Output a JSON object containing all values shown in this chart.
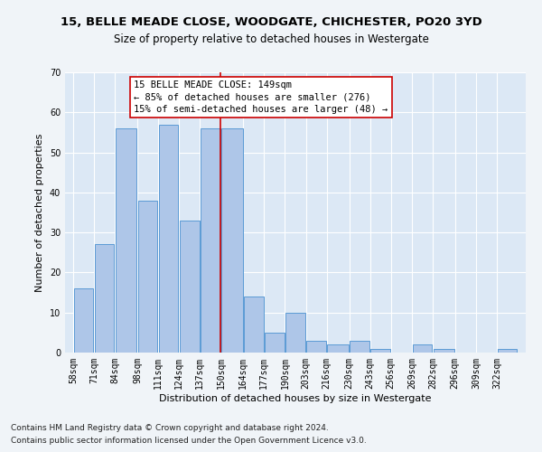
{
  "title": "15, BELLE MEADE CLOSE, WOODGATE, CHICHESTER, PO20 3YD",
  "subtitle": "Size of property relative to detached houses in Westergate",
  "xlabel": "Distribution of detached houses by size in Westergate",
  "ylabel": "Number of detached properties",
  "footnote1": "Contains HM Land Registry data © Crown copyright and database right 2024.",
  "footnote2": "Contains public sector information licensed under the Open Government Licence v3.0.",
  "annotation_line1": "15 BELLE MEADE CLOSE: 149sqm",
  "annotation_line2": "← 85% of detached houses are smaller (276)",
  "annotation_line3": "15% of semi-detached houses are larger (48) →",
  "bar_color": "#aec6e8",
  "bar_edge_color": "#5b9bd5",
  "ref_line_x": 150,
  "ref_line_color": "#cc0000",
  "categories": [
    "58sqm",
    "71sqm",
    "84sqm",
    "98sqm",
    "111sqm",
    "124sqm",
    "137sqm",
    "150sqm",
    "164sqm",
    "177sqm",
    "190sqm",
    "203sqm",
    "216sqm",
    "230sqm",
    "243sqm",
    "256sqm",
    "269sqm",
    "282sqm",
    "296sqm",
    "309sqm",
    "322sqm"
  ],
  "bin_edges": [
    58,
    71,
    84,
    98,
    111,
    124,
    137,
    150,
    164,
    177,
    190,
    203,
    216,
    230,
    243,
    256,
    269,
    282,
    296,
    309,
    322,
    335
  ],
  "values": [
    16,
    27,
    56,
    38,
    57,
    33,
    56,
    56,
    14,
    5,
    10,
    3,
    2,
    3,
    1,
    0,
    2,
    1,
    0,
    0,
    1
  ],
  "ylim": [
    0,
    70
  ],
  "yticks": [
    0,
    10,
    20,
    30,
    40,
    50,
    60,
    70
  ],
  "background_color": "#dce8f5",
  "grid_color": "#ffffff",
  "fig_background": "#f0f4f8",
  "title_fontsize": 9.5,
  "subtitle_fontsize": 8.5,
  "axis_label_fontsize": 8,
  "tick_fontsize": 7,
  "annotation_fontsize": 7.5,
  "footnote_fontsize": 6.5
}
